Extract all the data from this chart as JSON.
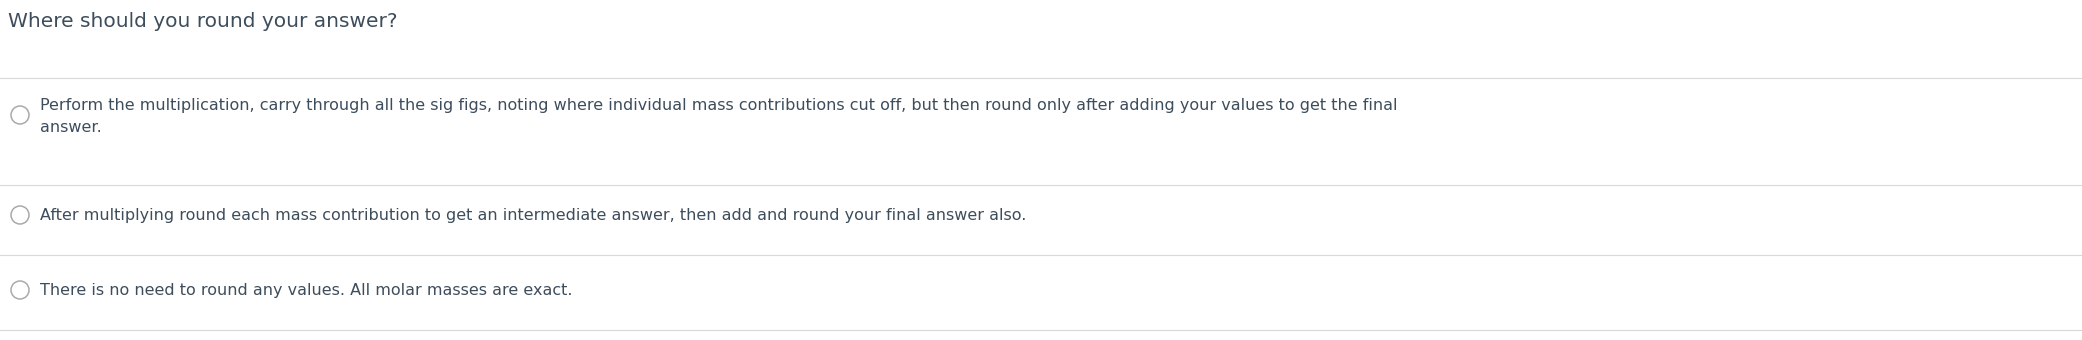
{
  "title": "Where should you round your answer?",
  "title_fontsize": 14.5,
  "title_color": "#3d4d5c",
  "title_bold": false,
  "background_color": "#ffffff",
  "text_color": "#3d4d5c",
  "separator_color": "#d8d8d8",
  "circle_edgecolor": "#aaaaaa",
  "options": [
    "Perform the multiplication, carry through all the sig figs, noting where individual mass contributions cut off, but then round only after adding your values to get the final\nanswer.",
    "After multiplying round each mass contribution to get an intermediate answer, then add and round your final answer also.",
    "There is no need to round any values. All molar masses are exact."
  ],
  "option_fontsize": 11.5,
  "figsize": [
    20.82,
    3.4
  ],
  "dpi": 100
}
